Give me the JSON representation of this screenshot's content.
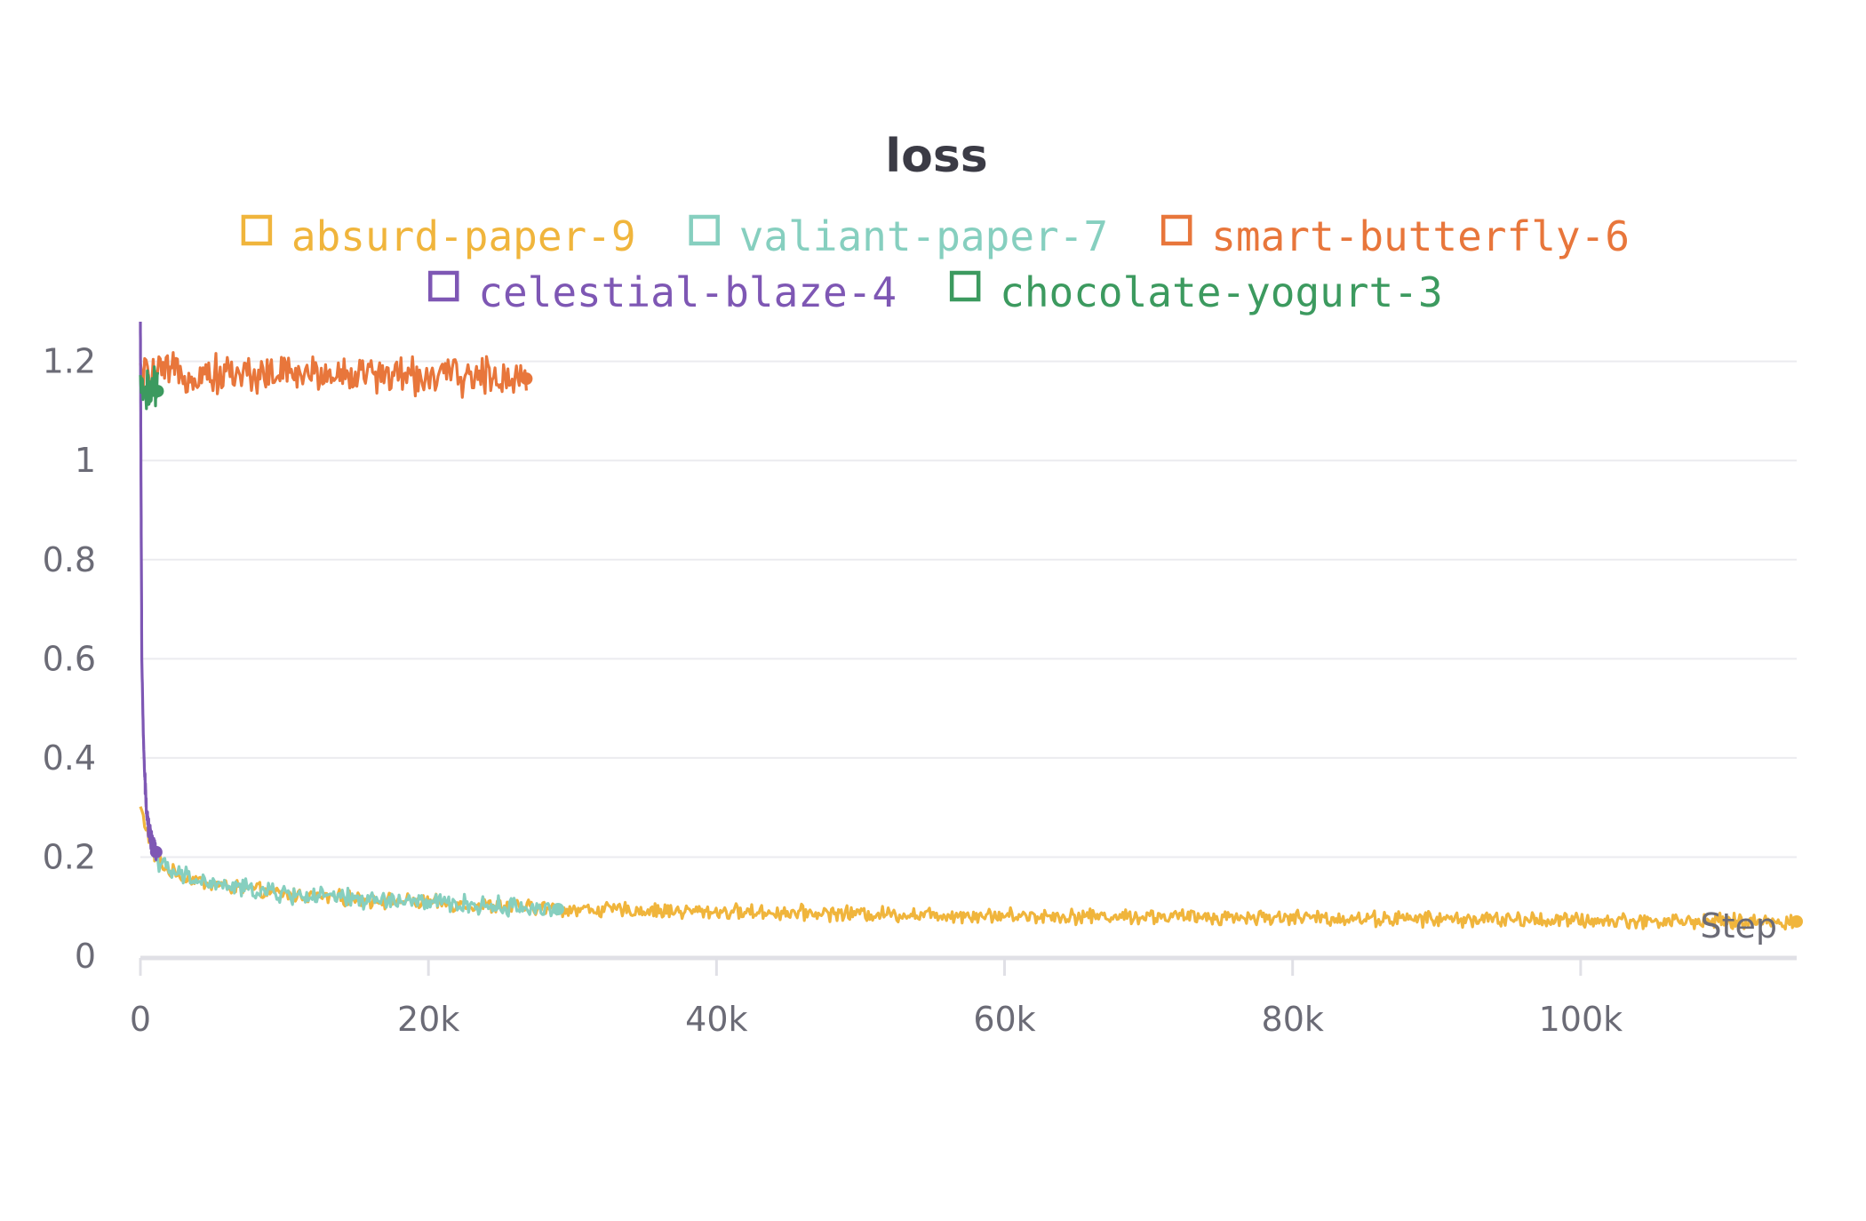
{
  "chart_data": {
    "type": "line",
    "title": "loss",
    "xlabel": "Step",
    "ylabel": "",
    "xlim": [
      0,
      115000
    ],
    "ylim": [
      0,
      1.28
    ],
    "x_ticks": [
      0,
      20000,
      40000,
      60000,
      80000,
      100000
    ],
    "x_tick_labels": [
      "0",
      "20k",
      "40k",
      "60k",
      "80k",
      "100k"
    ],
    "y_ticks": [
      0,
      0.2,
      0.4,
      0.6,
      0.8,
      1,
      1.2
    ],
    "y_tick_labels": [
      "0",
      "0.2",
      "0.4",
      "0.6",
      "0.8",
      "1",
      "1.2"
    ],
    "grid": true,
    "legend_position": "top",
    "series": [
      {
        "name": "absurd-paper-9",
        "color": "#f0b53c",
        "noise": 0.012,
        "x": [
          0,
          1000,
          2000,
          5000,
          10000,
          15000,
          20000,
          25000,
          30000,
          35000,
          40000,
          45000,
          50000,
          55000,
          60000,
          65000,
          70000,
          75000,
          80000,
          85000,
          90000,
          95000,
          100000,
          105000,
          110000,
          115000
        ],
        "y": [
          0.3,
          0.2,
          0.17,
          0.145,
          0.125,
          0.115,
          0.108,
          0.1,
          0.095,
          0.092,
          0.09,
          0.088,
          0.086,
          0.084,
          0.082,
          0.081,
          0.08,
          0.079,
          0.078,
          0.076,
          0.075,
          0.074,
          0.072,
          0.071,
          0.07,
          0.07
        ]
      },
      {
        "name": "valiant-paper-7",
        "color": "#86cfbf",
        "noise": 0.015,
        "x": [
          1000,
          2000,
          5000,
          10000,
          15000,
          20000,
          25000,
          29000
        ],
        "y": [
          0.2,
          0.17,
          0.145,
          0.125,
          0.115,
          0.108,
          0.1,
          0.095
        ]
      },
      {
        "name": "smart-butterfly-6",
        "color": "#e8763b",
        "noise": 0.03,
        "x": [
          0,
          1000,
          5000,
          10000,
          15000,
          20000,
          25000,
          26800
        ],
        "y": [
          1.17,
          1.175,
          1.175,
          1.175,
          1.175,
          1.17,
          1.17,
          1.165
        ]
      },
      {
        "name": "celestial-blaze-4",
        "color": "#7e57b4",
        "noise": 0.0,
        "x": [
          0,
          50,
          100,
          200,
          300,
          400,
          500,
          700,
          900,
          1100
        ],
        "y": [
          1.28,
          0.9,
          0.6,
          0.45,
          0.36,
          0.31,
          0.27,
          0.24,
          0.22,
          0.21
        ]
      },
      {
        "name": "chocolate-yogurt-3",
        "color": "#3c9a5f",
        "noise": 0.035,
        "x": [
          0,
          300,
          600,
          900,
          1200
        ],
        "y": [
          1.15,
          1.14,
          1.14,
          1.14,
          1.14
        ]
      }
    ]
  }
}
